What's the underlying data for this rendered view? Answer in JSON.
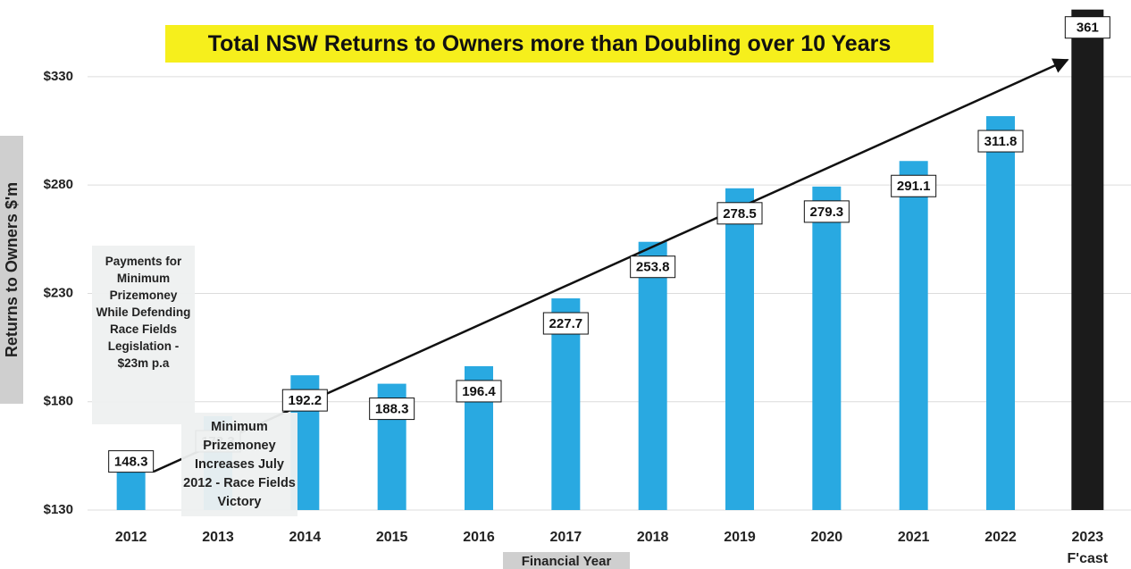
{
  "chart_data": {
    "type": "bar",
    "title": "Total NSW Returns to Owners more than Doubling over 10 Years",
    "x_label": "Financial Year",
    "y_label": "Returns to Owners $'m",
    "categories": [
      "2012",
      "2013",
      "2014",
      "2015",
      "2016",
      "2017",
      "2018",
      "2019",
      "2020",
      "2021",
      "2022",
      "2023 F'cast"
    ],
    "values": [
      148.3,
      173.3,
      192.2,
      188.3,
      196.4,
      227.7,
      253.8,
      278.5,
      279.3,
      291.1,
      311.8,
      361
    ],
    "colors": [
      "#29a9e1",
      "#29a9e1",
      "#29a9e1",
      "#29a9e1",
      "#29a9e1",
      "#29a9e1",
      "#29a9e1",
      "#29a9e1",
      "#29a9e1",
      "#29a9e1",
      "#29a9e1",
      "#1b1b1b"
    ],
    "ylim": [
      130,
      365
    ],
    "yticks": [
      {
        "value": 130,
        "label": "$130"
      },
      {
        "value": 180,
        "label": "$180"
      },
      {
        "value": 230,
        "label": "$230"
      },
      {
        "value": 280,
        "label": "$280"
      },
      {
        "value": 330,
        "label": "$330"
      }
    ],
    "grid": true,
    "annotations": [
      "Payments for Minimum Prizemoney While Defending Race Fields Legislation - $23m p.a",
      "Minimum Prizemoney Increases July 2012 - Race Fields Victory"
    ]
  }
}
